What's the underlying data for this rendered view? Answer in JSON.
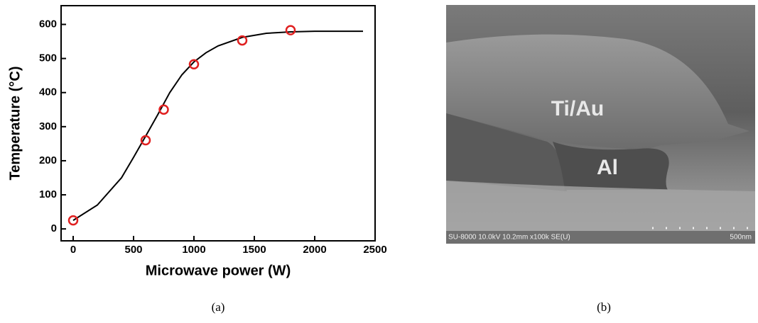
{
  "chart_data": {
    "type": "scatter",
    "x_label": "Microwave power (W)",
    "y_label": "Temperature (°C)",
    "xlim": [
      -100,
      2500
    ],
    "ylim": [
      -35,
      655
    ],
    "xticks": [
      0,
      500,
      1000,
      1500,
      2000,
      2500
    ],
    "yticks": [
      0,
      100,
      200,
      300,
      400,
      500,
      600
    ],
    "series": [
      {
        "type": "scatter",
        "color": "#e02020",
        "x": [
          0,
          600,
          750,
          1000,
          1400,
          1800
        ],
        "values": [
          25,
          260,
          350,
          483,
          553,
          583
        ]
      },
      {
        "type": "line",
        "color": "#000000",
        "x": [
          0,
          200,
          400,
          500,
          600,
          700,
          800,
          900,
          1000,
          1100,
          1200,
          1400,
          1600,
          1800,
          2000,
          2400
        ],
        "values": [
          25,
          70,
          150,
          210,
          272,
          335,
          400,
          452,
          490,
          517,
          537,
          562,
          574,
          578,
          580,
          580
        ]
      }
    ]
  },
  "figure": {
    "panel_a": "(a)",
    "panel_b": "(b)",
    "image": {
      "labels": [
        "Ti/Au",
        "Al"
      ],
      "info_bar": "SU-8000 10.0kV 10.2mm x100k SE(U)",
      "scale": "500nm"
    }
  }
}
